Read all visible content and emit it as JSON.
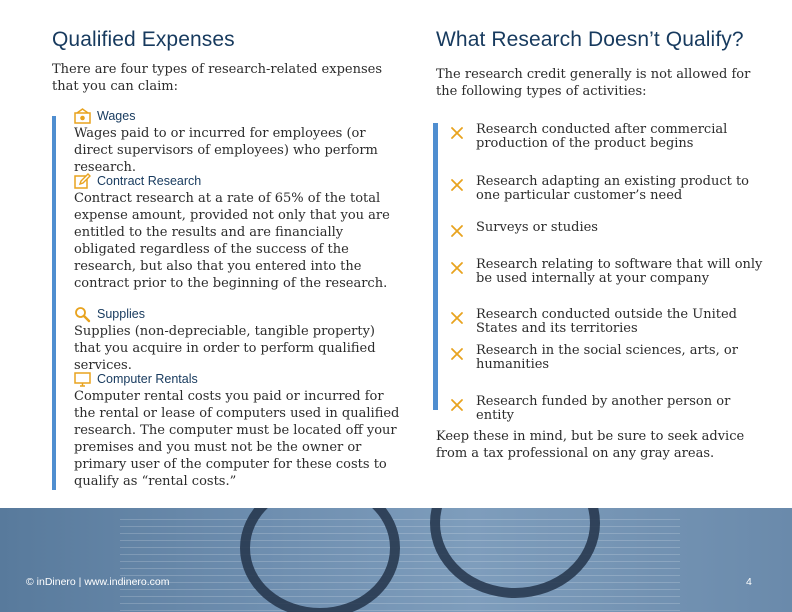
{
  "left": {
    "title": "Qualified Expenses",
    "intro": "There are four types of research-related expenses that you can claim:",
    "items": [
      {
        "icon": "wages-icon",
        "label": "Wages",
        "body": "Wages paid to or incurred for employees (or direct supervisors of employees) who perform research."
      },
      {
        "icon": "edit-icon",
        "label": "Contract Research",
        "body": "Contract research at a rate of 65% of the total expense amount, provided not only that you are entitled to the results and are financially obligated regardless of the success of the research, but also that you entered into the contract prior to the beginning of the research."
      },
      {
        "icon": "magnifier-icon",
        "label": "Supplies",
        "body": "Supplies (non-depreciable, tangible property) that you acquire in order to perform qualified services."
      },
      {
        "icon": "monitor-icon",
        "label": "Computer Rentals",
        "body": "Computer rental costs you paid or incurred for the rental or lease of computers used in qualified research. The computer must be located off your premises and you must not be the owner or primary user of the computer for these costs to qualify as “rental costs.”"
      }
    ]
  },
  "right": {
    "title": "What Research Doesn’t Qualify?",
    "intro": "The research credit generally is not allowed for the following types of activities:",
    "items": [
      "Research conducted after commercial production of the product begins",
      "Research adapting an existing product to one particular customer’s need",
      "Surveys or studies",
      "Research relating to software that will only be used internally at your company",
      "Research conducted outside the United States and its territories",
      "Research in the social sciences, arts, or humanities",
      "Research funded by another person or entity"
    ],
    "closing": "Keep these in mind, but be sure to seek advice from a tax professional on any gray areas."
  },
  "footer": {
    "copyright": "© inDinero | www.indinero.com",
    "page": "4"
  },
  "colors": {
    "heading": "#173a5e",
    "accent_bar": "#4f8ed0",
    "icon": "#e8a31f",
    "x_mark": "#e8a31f"
  }
}
